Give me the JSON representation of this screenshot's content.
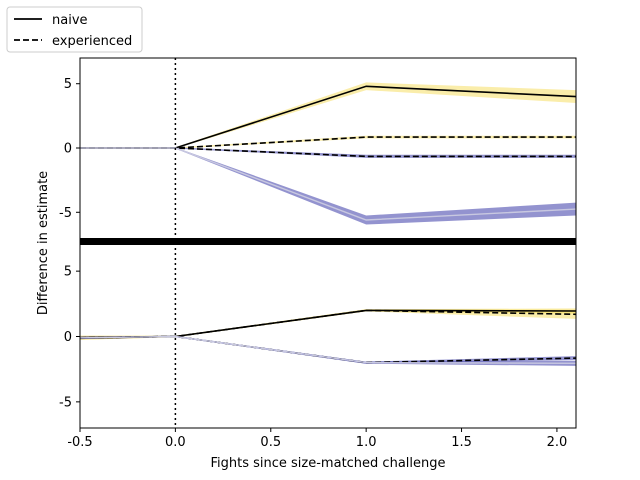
{
  "chart_data": {
    "type": "line",
    "xlabel": "Fights since size-matched challenge",
    "ylabel": "Difference in estimate",
    "xlim": [
      -0.5,
      2.1
    ],
    "xticks": [
      "-0.5",
      "0.0",
      "0.5",
      "1.0",
      "1.5",
      "2.0"
    ],
    "xtick_values": [
      -0.5,
      0.0,
      0.5,
      1.0,
      1.5,
      2.0
    ],
    "vline_x": 0.0,
    "legend": {
      "placement": "top-left, outside plot",
      "entries": [
        {
          "label": "naive",
          "style": "solid"
        },
        {
          "label": "experienced",
          "style": "dashed"
        }
      ]
    },
    "colors": {
      "yellow_band": "#f5d742",
      "blue_band": "#3b3ba8",
      "light_band": "#c8c8e0",
      "line_black": "#000000",
      "separator": "#000000"
    },
    "panels": [
      {
        "ylim": [
          -7,
          7
        ],
        "yticks": [
          "5",
          "0",
          "-5"
        ],
        "ytick_values": [
          5,
          0,
          -5
        ],
        "series": [
          {
            "style": "solid",
            "band": "yellow",
            "x": [
              -0.5,
              0,
              1,
              2.1
            ],
            "y": [
              0,
              0,
              4.8,
              4.0
            ],
            "spread": [
              0.05,
              0.05,
              0.3,
              0.5
            ]
          },
          {
            "style": "dashed",
            "band": "yellow",
            "x": [
              -0.5,
              0,
              1,
              2.1
            ],
            "y": [
              0,
              0,
              0.85,
              0.85
            ],
            "spread": [
              0.05,
              0.05,
              0.1,
              0.1
            ]
          },
          {
            "style": "dashed",
            "band": "blue",
            "x": [
              -0.5,
              0,
              1,
              2.1
            ],
            "y": [
              0,
              0,
              -0.65,
              -0.65
            ],
            "spread": [
              0.05,
              0.05,
              0.12,
              0.12
            ]
          },
          {
            "style": "light",
            "band": "blue",
            "x": [
              -0.5,
              0,
              1,
              2.1
            ],
            "y": [
              0,
              0,
              -5.6,
              -4.75
            ],
            "spread": [
              0.05,
              0.05,
              0.35,
              0.5
            ]
          }
        ]
      },
      {
        "ylim": [
          -7,
          7
        ],
        "yticks": [
          "5",
          "0",
          "-5"
        ],
        "ytick_values": [
          5,
          0,
          -5
        ],
        "series": [
          {
            "style": "solid",
            "band": "yellow",
            "x": [
              -0.5,
              0,
              1,
              2.1
            ],
            "y": [
              -0.1,
              0,
              2.0,
              1.95
            ],
            "spread": [
              0.15,
              0.05,
              0.08,
              0.2
            ]
          },
          {
            "style": "dashed",
            "band": "yellow",
            "x": [
              -0.5,
              0,
              1,
              2.1
            ],
            "y": [
              -0.1,
              0,
              2.0,
              1.7
            ],
            "spread": [
              0.15,
              0.05,
              0.08,
              0.35
            ]
          },
          {
            "style": "dashed",
            "band": "blue",
            "x": [
              -0.5,
              0,
              1,
              2.1
            ],
            "y": [
              -0.1,
              0,
              -2.0,
              -1.65
            ],
            "spread": [
              0.1,
              0.05,
              0.08,
              0.15
            ]
          },
          {
            "style": "light",
            "band": "blue",
            "x": [
              -0.5,
              0,
              1,
              2.1
            ],
            "y": [
              -0.1,
              0,
              -2.0,
              -2.05
            ],
            "spread": [
              0.1,
              0.05,
              0.08,
              0.2
            ]
          }
        ]
      }
    ]
  }
}
